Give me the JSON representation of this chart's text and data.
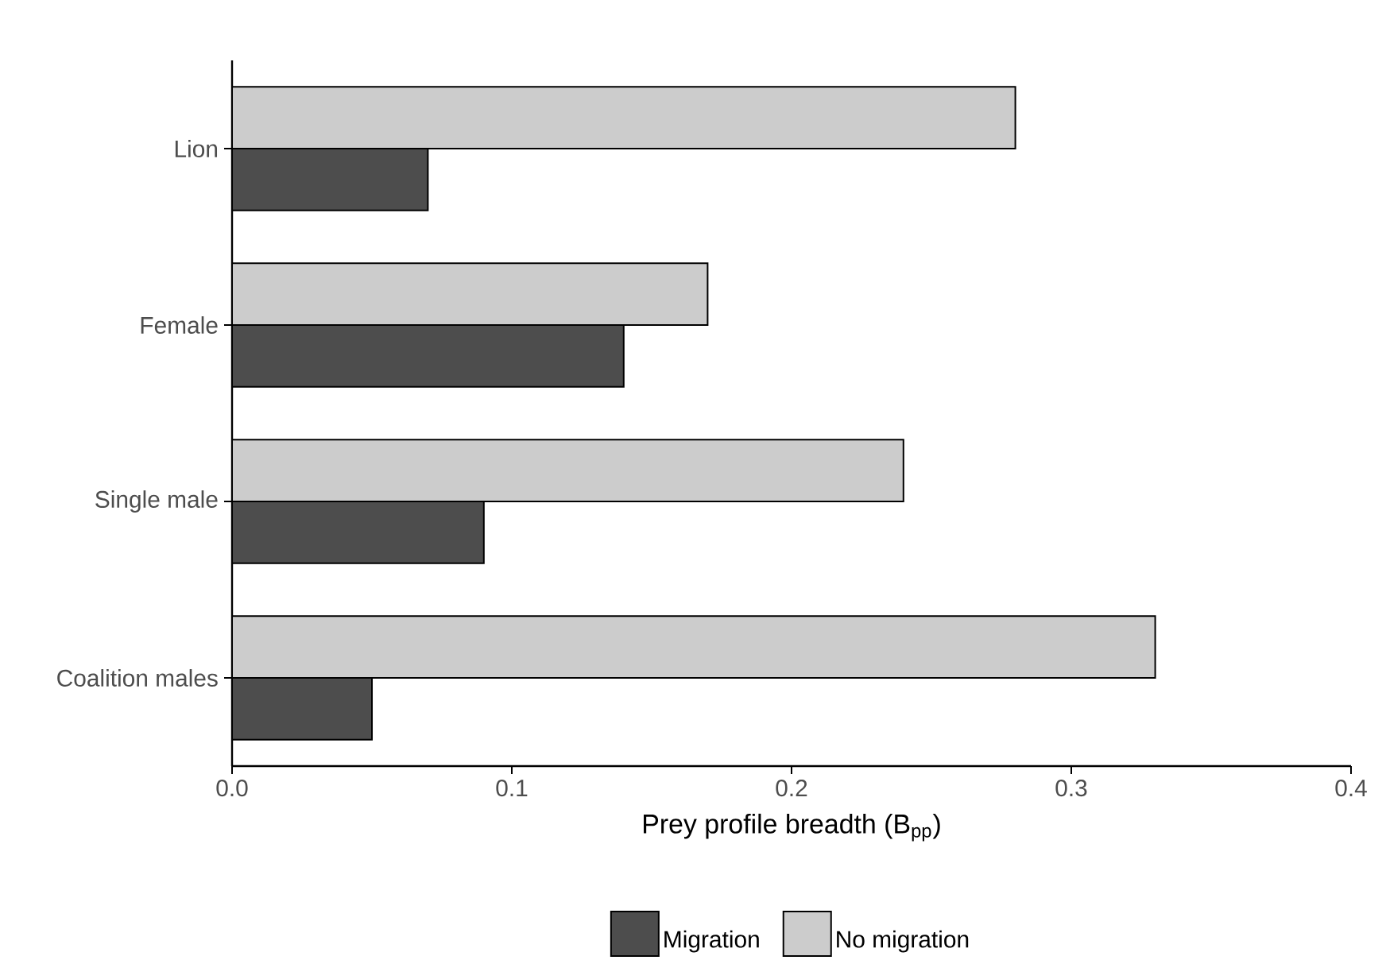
{
  "chart_data": {
    "type": "bar",
    "orientation": "horizontal",
    "xlabel": "Prey profile breadth (B$_{pp}$)",
    "categories": [
      "Lion",
      "Female",
      "Single male",
      "Coalition males"
    ],
    "series": [
      {
        "name": "Migration",
        "color": "#4d4d4d",
        "values": [
          0.07,
          0.14,
          0.09,
          0.05
        ]
      },
      {
        "name": "No migration",
        "color": "#cccccc",
        "values": [
          0.28,
          0.17,
          0.24,
          0.33
        ]
      }
    ],
    "xlim": [
      0,
      0.4
    ],
    "xticks": [
      {
        "value": 0,
        "label": "0.0"
      },
      0.1,
      0.2,
      0.3,
      0.4
    ],
    "legend": "bottom"
  }
}
